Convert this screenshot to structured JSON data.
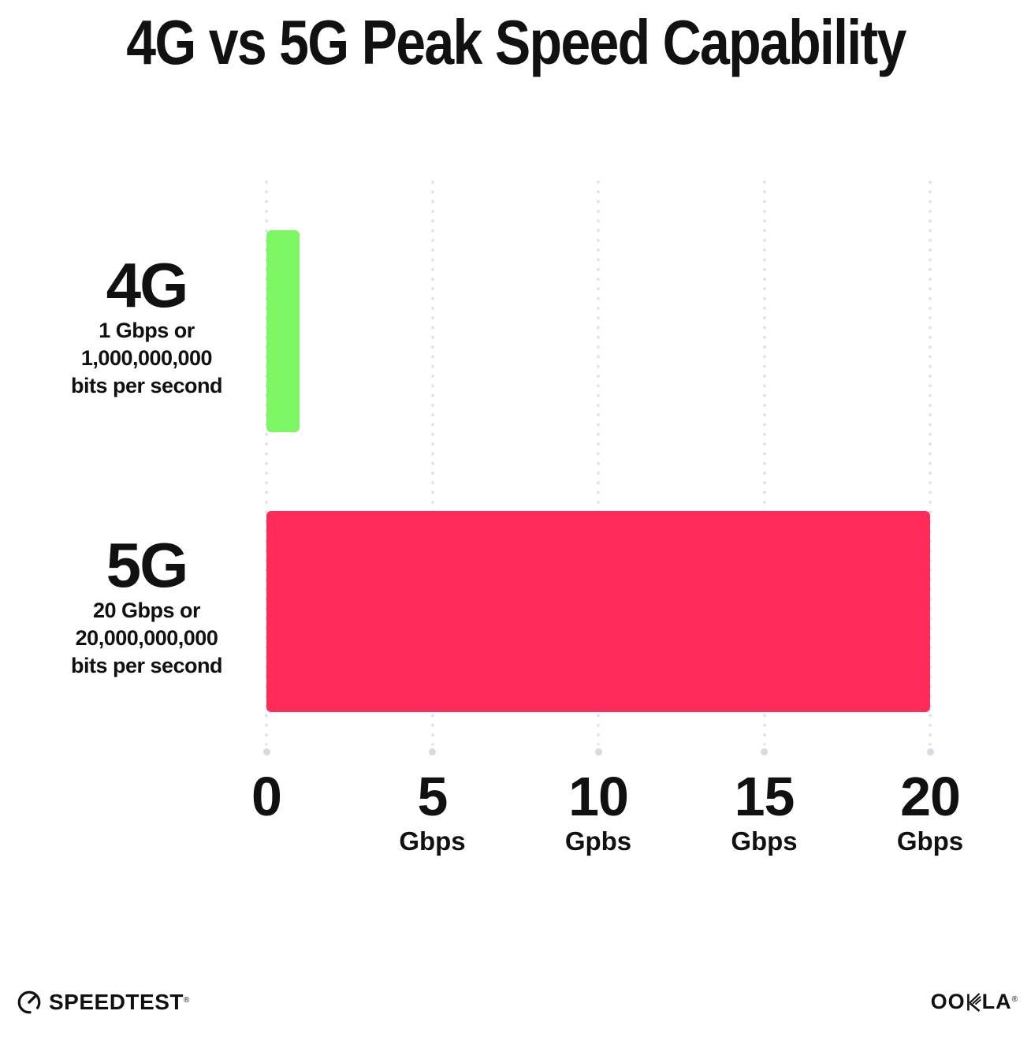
{
  "title": "4G vs 5G Peak Speed Capability",
  "chart_data": {
    "type": "bar",
    "orientation": "horizontal",
    "title": "4G vs 5G Peak Speed Capability",
    "categories": [
      "4G",
      "5G"
    ],
    "values": [
      1,
      20
    ],
    "value_unit": "Gbps",
    "bar_colors": [
      "#7DF763",
      "#FF2B58"
    ],
    "xlim": [
      0,
      20
    ],
    "xticks": [
      0,
      5,
      10,
      15,
      20
    ],
    "xtick_labels": [
      "0",
      "5",
      "10",
      "15",
      "20"
    ],
    "xtick_units": [
      "",
      "Gbps",
      "Gpbs",
      "Gbps",
      "Gbps"
    ],
    "grid": "vertical-dotted",
    "legend_position": "none"
  },
  "rows": [
    {
      "label": "4G",
      "sub_line1": "1 Gbps or",
      "sub_line2": "1,000,000,000",
      "sub_line3": "bits per second"
    },
    {
      "label": "5G",
      "sub_line1": "20 Gbps or",
      "sub_line2": "20,000,000,000",
      "sub_line3": "bits per second"
    }
  ],
  "footer": {
    "speedtest_text": "SPEEDTEST",
    "speedtest_mark": "®",
    "ookla_left": "OO",
    "ookla_right": "LA",
    "ookla_mark": "®"
  },
  "colors": {
    "background": "#FFFFFF",
    "text": "#111111",
    "bar_4g": "#7DF763",
    "bar_5g": "#FF2B58",
    "gridline_dot": "#DFE1EC",
    "gridline_end_dot": "#D6D9E6"
  }
}
